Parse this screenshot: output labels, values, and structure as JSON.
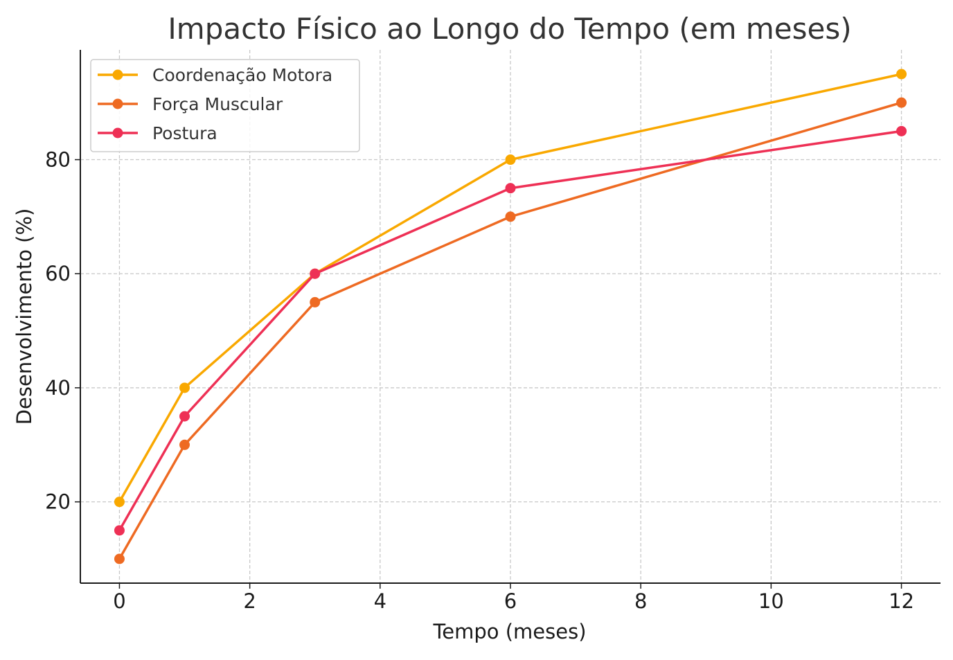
{
  "chart_data": {
    "type": "line",
    "title": "Impacto Físico ao Longo do Tempo (em meses)",
    "xlabel": "Tempo (meses)",
    "ylabel": "Desenvolvimento (%)",
    "x": [
      0,
      1,
      3,
      6,
      12
    ],
    "xlim": [
      -0.6,
      12.6
    ],
    "ylim": [
      5.75,
      99.25
    ],
    "xticks": [
      0,
      2,
      4,
      6,
      8,
      10,
      12
    ],
    "yticks": [
      20,
      40,
      60,
      80
    ],
    "grid": true,
    "legend_position": "top-left",
    "series": [
      {
        "name": "Coordenação Motora",
        "values": [
          20,
          40,
          60,
          80,
          95
        ],
        "color": "#F9A800"
      },
      {
        "name": "Força Muscular",
        "values": [
          10,
          30,
          55,
          70,
          90
        ],
        "color": "#EE6A22"
      },
      {
        "name": "Postura",
        "values": [
          15,
          35,
          60,
          75,
          85
        ],
        "color": "#EE3055"
      }
    ]
  }
}
